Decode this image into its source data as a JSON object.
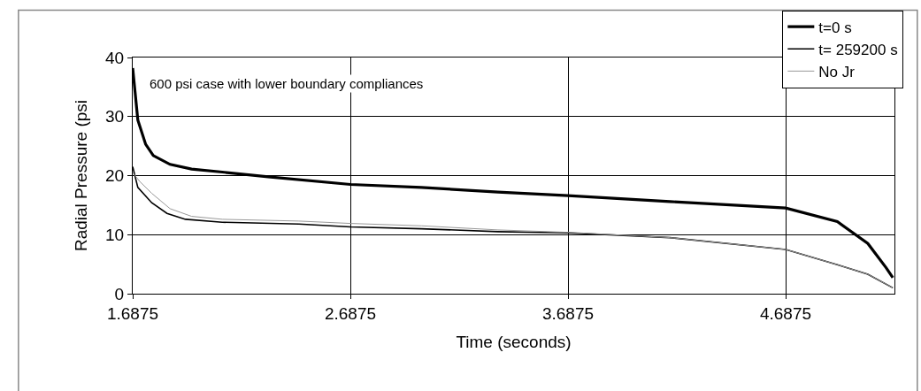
{
  "chart_data": {
    "type": "line",
    "xlabel": "Time (seconds)",
    "ylabel": "Radial Pressure (psi",
    "annotations": [
      "600 psi case with lower boundary compliances"
    ],
    "xlim": [
      1.6875,
      5.1875
    ],
    "xticks": [
      1.6875,
      2.6875,
      3.6875,
      4.6875
    ],
    "ylim": [
      0,
      40
    ],
    "yticks": [
      0,
      10,
      20,
      30,
      40
    ],
    "grid": true,
    "legend": "top right",
    "marker": "none",
    "line_style": "solid",
    "series": [
      {
        "name": "t=0 s",
        "color": "#000000",
        "x": [
          1.6875,
          1.711,
          1.747,
          1.782,
          1.859,
          1.958,
          2.099,
          2.31,
          2.6875,
          3.014,
          3.366,
          3.6875,
          4.156,
          4.6875,
          4.925,
          5.065,
          5.149,
          5.18
        ],
        "values": [
          38.2,
          29.4,
          25.3,
          23.4,
          21.9,
          21.1,
          20.6,
          19.8,
          18.5,
          18.0,
          17.2,
          16.6,
          15.6,
          14.5,
          12.2,
          8.5,
          4.4,
          2.7
        ]
      },
      {
        "name": "t= 259200 s",
        "color": "#000000",
        "x": [
          1.6875,
          1.711,
          1.775,
          1.845,
          1.93,
          2.099,
          2.451,
          2.6875,
          3.014,
          3.366,
          3.6875,
          4.156,
          4.6875,
          4.925,
          5.065,
          5.18
        ],
        "values": [
          21.5,
          18.0,
          15.4,
          13.6,
          12.6,
          12.1,
          11.8,
          11.3,
          11.0,
          10.5,
          10.3,
          9.5,
          7.5,
          4.9,
          3.3,
          1.0
        ]
      },
      {
        "name": "No Jr",
        "color": "#999999",
        "x": [
          1.6875,
          1.72,
          1.775,
          1.859,
          1.958,
          2.099,
          2.451,
          2.6875,
          3.014,
          3.366,
          3.6875,
          4.156,
          4.6875,
          4.925,
          5.065,
          5.18
        ],
        "values": [
          20.5,
          19.0,
          17.0,
          14.4,
          13.1,
          12.6,
          12.3,
          11.9,
          11.5,
          10.8,
          10.4,
          9.5,
          7.5,
          4.9,
          3.3,
          1.0
        ]
      }
    ]
  }
}
